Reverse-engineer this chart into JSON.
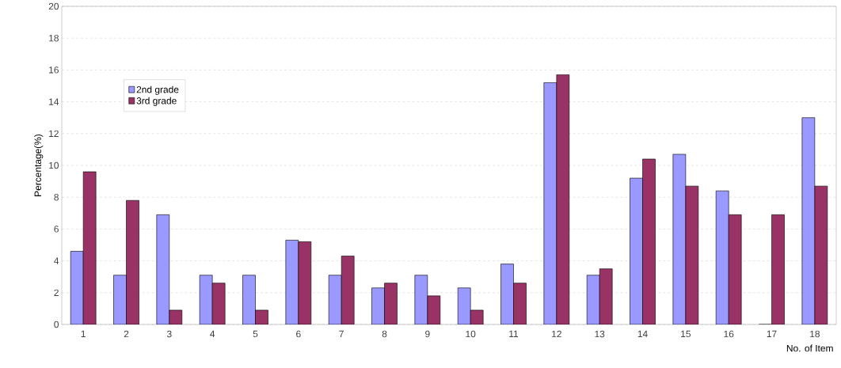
{
  "chart_data": {
    "type": "bar",
    "xlabel": "No. of Item",
    "ylabel": "Percentage(%)",
    "categories": [
      "1",
      "2",
      "3",
      "4",
      "5",
      "6",
      "7",
      "8",
      "9",
      "10",
      "11",
      "12",
      "13",
      "14",
      "15",
      "16",
      "17",
      "18"
    ],
    "series": [
      {
        "name": "2nd grade",
        "color": "#9999ff",
        "values": [
          4.6,
          3.1,
          6.9,
          3.1,
          3.1,
          5.3,
          3.1,
          2.3,
          3.1,
          2.3,
          3.8,
          15.2,
          3.1,
          9.2,
          10.7,
          8.4,
          0,
          13.0
        ]
      },
      {
        "name": "3rd grade",
        "color": "#993366",
        "values": [
          9.6,
          7.8,
          0.9,
          2.6,
          0.9,
          5.2,
          4.3,
          2.6,
          1.8,
          0.9,
          2.6,
          15.7,
          3.5,
          10.4,
          8.7,
          6.9,
          6.9,
          8.7
        ]
      }
    ],
    "ylim": [
      0,
      20
    ],
    "yticks": [
      0,
      2,
      4,
      6,
      8,
      10,
      12,
      14,
      16,
      18,
      20
    ],
    "grid": "y",
    "legend": "top left"
  }
}
